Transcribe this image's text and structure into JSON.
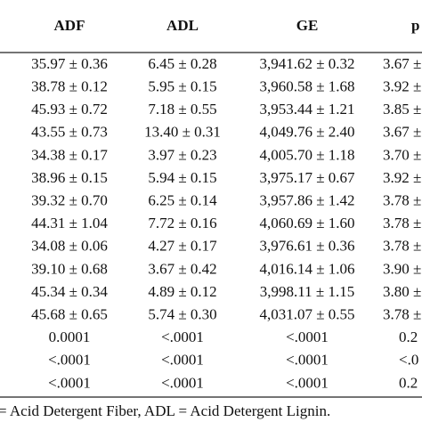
{
  "table": {
    "header": [
      "ADF",
      "ADL",
      "GE",
      "p"
    ],
    "rows": [
      [
        "35.97 ± 0.36",
        "6.45 ± 0.28",
        "3,941.62 ± 0.32",
        "3.67 ±"
      ],
      [
        "38.78 ± 0.12",
        "5.95 ± 0.15",
        "3,960.58 ± 1.68",
        "3.92 ±"
      ],
      [
        "45.93 ± 0.72",
        "7.18 ± 0.55",
        "3,953.44 ± 1.21",
        "3.85 ±"
      ],
      [
        "43.55 ± 0.73",
        "13.40 ± 0.31",
        "4,049.76 ± 2.40",
        "3.67 ±"
      ],
      [
        "34.38 ± 0.17",
        "3.97 ± 0.23",
        "4,005.70 ± 1.18",
        "3.70 ±"
      ],
      [
        "38.96 ± 0.15",
        "5.94 ± 0.15",
        "3,975.17 ± 0.67",
        "3.92 ±"
      ],
      [
        "39.32 ± 0.70",
        "6.25 ± 0.14",
        "3,957.86 ± 1.42",
        "3.78 ±"
      ],
      [
        "44.31 ± 1.04",
        "7.72 ± 0.16",
        "4,060.69 ± 1.60",
        "3.78 ±"
      ],
      [
        "34.08 ± 0.06",
        "4.27 ± 0.17",
        "3,976.61 ± 0.36",
        "3.78 ±"
      ],
      [
        "39.10 ± 0.68",
        "3.67 ± 0.42",
        "4,016.14 ± 1.06",
        "3.90 ±"
      ],
      [
        "45.34 ± 0.34",
        "4.89 ± 0.12",
        "3,998.11 ± 1.15",
        "3.80 ±"
      ],
      [
        "45.68 ± 0.65",
        "5.74 ± 0.30",
        "4,031.07 ± 0.55",
        "3.78 ±"
      ],
      [
        "0.0001",
        "<.0001",
        "<.0001",
        "0.2"
      ],
      [
        "<.0001",
        "<.0001",
        "<.0001",
        "<.0"
      ],
      [
        "<.0001",
        "<.0001",
        "<.0001",
        "0.2"
      ]
    ],
    "footnote": "= Acid Detergent Fiber, ADL = Acid Detergent Lignin."
  }
}
